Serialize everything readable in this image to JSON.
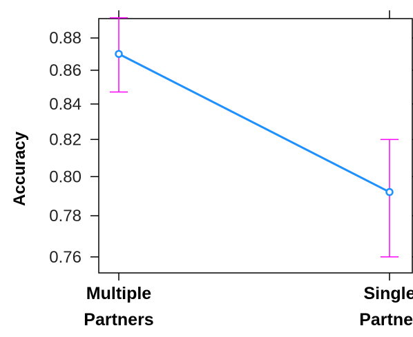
{
  "chart_data": {
    "type": "line",
    "title": "",
    "xlabel": "",
    "ylabel": "Accuracy",
    "categories": [
      "Multiple Partners",
      "Single Partner"
    ],
    "category_lines": [
      [
        "Multiple",
        "Partners"
      ],
      [
        "Single",
        "Partner"
      ]
    ],
    "series": [
      {
        "values": [
          0.87,
          0.792
        ],
        "error_low": [
          0.847,
          0.76
        ],
        "error_high": [
          0.893,
          0.82
        ]
      }
    ],
    "y_scale": "reciprocal",
    "ylim": [
      0.757,
      0.897
    ],
    "yticks": [
      0.76,
      0.78,
      0.8,
      0.82,
      0.84,
      0.86,
      0.88
    ],
    "ytick_labels": [
      "0.76",
      "0.78",
      "0.80",
      "0.82",
      "0.84",
      "0.86",
      "0.88"
    ],
    "grid": false,
    "legend": "none",
    "colors": {
      "line": "#1e90ff",
      "error_bar": "#ff00ff",
      "frame": "#000000"
    }
  }
}
